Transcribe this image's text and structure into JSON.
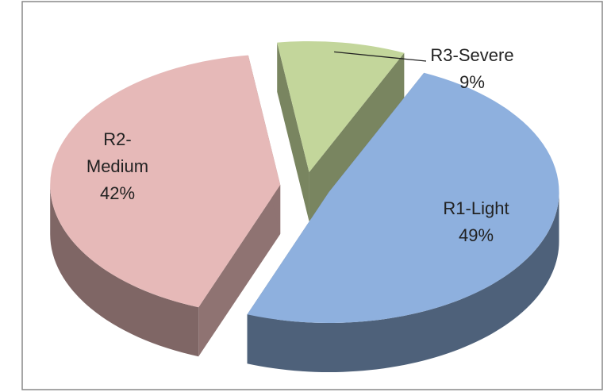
{
  "chart_data": {
    "type": "pie",
    "categories": [
      "R3-Severe",
      "R1-Light",
      "R2-Medium"
    ],
    "values": [
      9,
      49,
      42
    ],
    "value_labels": [
      "9%",
      "49%",
      "42%"
    ],
    "colors": [
      "#c3d69b",
      "#8eb0de",
      "#e6b9b8"
    ]
  }
}
